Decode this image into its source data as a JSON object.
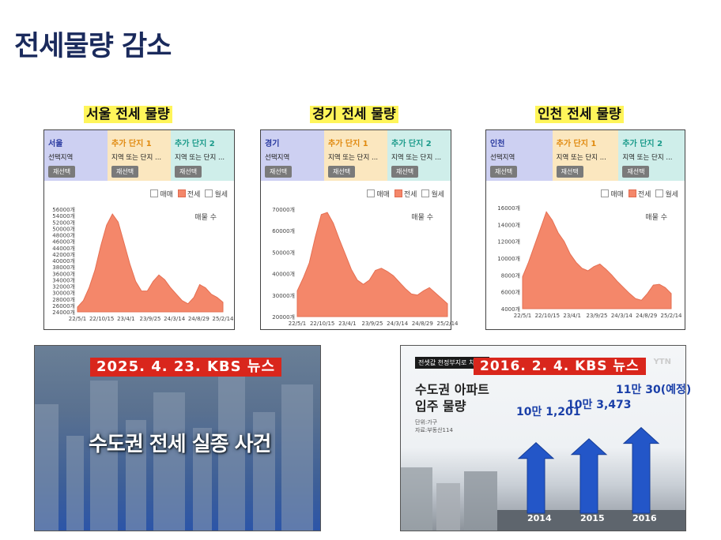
{
  "page": {
    "title": "전세물량 감소"
  },
  "charts": [
    {
      "caption": "서울 전세 물량",
      "header": {
        "region": "서울",
        "region_sub": "선택지역",
        "region_btn": "재선택",
        "add1": "추가 단지 1",
        "add1_sub": "지역 또는 단지 ...",
        "add1_btn": "재선택",
        "add2": "추가 단지 2",
        "add2_sub": "지역 또는 단지 ...",
        "add2_btn": "재선택"
      },
      "legend": [
        "매매",
        "전세",
        "월세"
      ],
      "unit_label": "매물 수"
    },
    {
      "caption": "경기 전세 물량",
      "header": {
        "region": "경기",
        "region_sub": "선택지역",
        "region_btn": "재선택",
        "add1": "추가 단지 1",
        "add1_sub": "지역 또는 단지 ...",
        "add1_btn": "재선택",
        "add2": "추가 단지 2",
        "add2_sub": "지역 또는 단지 ...",
        "add2_btn": "재선택"
      },
      "legend": [
        "매매",
        "전세",
        "월세"
      ],
      "unit_label": "매물 수"
    },
    {
      "caption": "인천 전세 물량",
      "header": {
        "region": "인천",
        "region_sub": "선택지역",
        "region_btn": "재선택",
        "add1": "추가 단지 1",
        "add1_sub": "지역 또는 단지 ...",
        "add1_btn": "재선택",
        "add2": "추가 단지 2",
        "add2_sub": "지역 또는 단지 ...",
        "add2_btn": "재선택"
      },
      "legend": [
        "매매",
        "전세",
        "월세"
      ],
      "unit_label": "매물 수"
    }
  ],
  "chart_data": [
    {
      "type": "area",
      "title": "서울 전세 물량",
      "series": [
        {
          "name": "전세"
        }
      ],
      "fill_color": "#f4876a",
      "ylim": [
        24000,
        56000
      ],
      "yticks": [
        "24000개",
        "26000개",
        "28000개",
        "30000개",
        "32000개",
        "34000개",
        "36000개",
        "38000개",
        "40000개",
        "42000개",
        "44000개",
        "46000개",
        "48000개",
        "50000개",
        "52000개",
        "54000개",
        "56000개"
      ],
      "xticks": [
        "22/5/1",
        "22/10/15",
        "23/4/1",
        "23/9/25",
        "24/3/14",
        "24/8/29",
        "25/2/14"
      ],
      "x": [
        "22/5/1",
        "22/7/1",
        "22/9/1",
        "22/10/15",
        "22/12/1",
        "23/1/1",
        "23/2/1",
        "23/3/1",
        "23/4/1",
        "23/5/15",
        "23/7/1",
        "23/8/15",
        "23/9/25",
        "23/11/1",
        "23/12/15",
        "24/2/1",
        "24/3/14",
        "24/5/1",
        "24/6/15",
        "24/8/1",
        "24/8/29",
        "24/10/15",
        "24/12/1",
        "25/1/15",
        "25/2/14",
        "25/4/1"
      ],
      "values": [
        25500,
        27500,
        31500,
        37000,
        44500,
        51000,
        54500,
        52000,
        45500,
        39000,
        33500,
        30500,
        30500,
        33500,
        35500,
        34000,
        31500,
        29500,
        27500,
        26500,
        28500,
        32500,
        31500,
        29500,
        28500,
        27000
      ]
    },
    {
      "type": "area",
      "title": "경기 전세 물량",
      "series": [
        {
          "name": "전세"
        }
      ],
      "fill_color": "#f4876a",
      "ylim": [
        20000,
        70000
      ],
      "yticks": [
        "20000개",
        "30000개",
        "40000개",
        "50000개",
        "60000개",
        "70000개"
      ],
      "xticks": [
        "22/5/1",
        "22/10/15",
        "23/4/1",
        "23/9/25",
        "24/3/14",
        "24/8/29",
        "25/2/14"
      ],
      "x": [
        "22/5/1",
        "22/7/1",
        "22/9/1",
        "22/10/15",
        "22/12/1",
        "23/1/1",
        "23/2/1",
        "23/3/1",
        "23/4/1",
        "23/5/15",
        "23/7/1",
        "23/8/15",
        "23/9/25",
        "23/11/1",
        "23/12/15",
        "24/2/1",
        "24/3/14",
        "24/5/1",
        "24/6/15",
        "24/8/1",
        "24/8/29",
        "24/10/15",
        "24/12/1",
        "25/1/15",
        "25/2/14",
        "25/4/1"
      ],
      "values": [
        32000,
        38000,
        45000,
        57000,
        67500,
        68500,
        63500,
        56000,
        49000,
        42000,
        37000,
        35000,
        37000,
        41500,
        42500,
        41000,
        39000,
        36000,
        33000,
        30500,
        30000,
        32000,
        33500,
        31000,
        28500,
        26000
      ]
    },
    {
      "type": "area",
      "title": "인천 전세 물량",
      "series": [
        {
          "name": "전세"
        }
      ],
      "fill_color": "#f4876a",
      "ylim": [
        4000,
        16000
      ],
      "yticks": [
        "4000개",
        "6000개",
        "8000개",
        "10000개",
        "12000개",
        "14000개",
        "16000개"
      ],
      "xticks": [
        "22/5/1",
        "22/10/15",
        "23/4/1",
        "23/9/25",
        "24/3/14",
        "24/8/29",
        "25/2/14"
      ],
      "x": [
        "22/5/1",
        "22/7/1",
        "22/9/1",
        "22/10/15",
        "22/12/1",
        "23/1/1",
        "23/2/1",
        "23/3/1",
        "23/4/1",
        "23/5/15",
        "23/7/1",
        "23/8/15",
        "23/9/25",
        "23/11/1",
        "23/12/15",
        "24/2/1",
        "24/3/14",
        "24/5/1",
        "24/6/15",
        "24/8/1",
        "24/8/29",
        "24/10/15",
        "24/12/1",
        "25/1/15",
        "25/2/14",
        "25/4/1"
      ],
      "values": [
        7800,
        9500,
        11500,
        13500,
        15500,
        14500,
        13000,
        12000,
        10500,
        9500,
        8800,
        8500,
        9000,
        9300,
        8700,
        8000,
        7200,
        6500,
        5800,
        5200,
        5000,
        5800,
        6800,
        6900,
        6500,
        5800
      ]
    }
  ],
  "news": [
    {
      "banner": "2025. 4. 23. KBS 뉴스",
      "headline": "수도권 전세 실종 사건"
    },
    {
      "banner": "2016. 2. 4. KBS 뉴스",
      "top_strip": "전셋값 천정부지로 치솟아",
      "channel": "YTN",
      "heading_line1": "수도권 아파트",
      "heading_line2": "입주 물량",
      "unit_line1": "단위:가구",
      "unit_line2": "자료:부동산114",
      "arrows": [
        {
          "label": "10만 1,201",
          "year": "2014",
          "value": 101201
        },
        {
          "label": "10만 3,473",
          "year": "2015",
          "value": 103473
        },
        {
          "label": "11만 30(예정)",
          "year": "2016",
          "value": 110030
        }
      ]
    }
  ]
}
